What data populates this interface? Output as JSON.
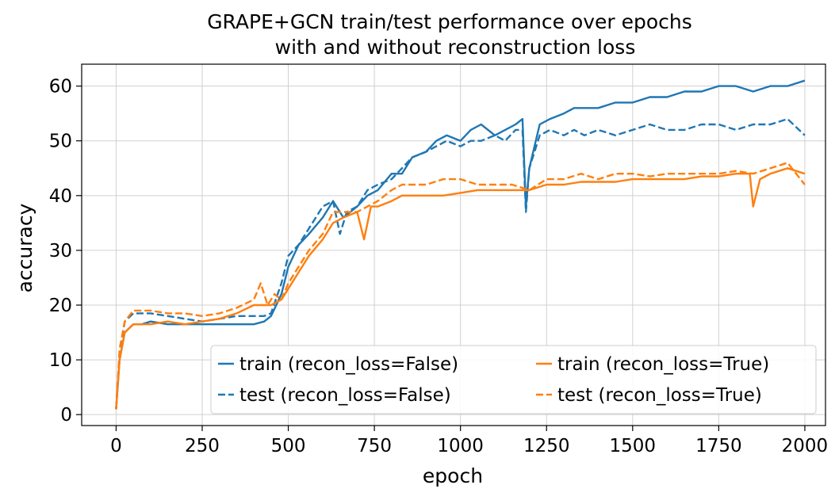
{
  "chart_data": {
    "type": "line",
    "title_line1": "GRAPE+GCN train/test performance over epochs",
    "title_line2": "with and without reconstruction loss",
    "xlabel": "epoch",
    "ylabel": "accuracy",
    "xlim": [
      -100,
      2060
    ],
    "ylim": [
      -2,
      64
    ],
    "xticks": [
      0,
      250,
      500,
      750,
      1000,
      1250,
      1500,
      1750,
      2000
    ],
    "yticks": [
      0,
      10,
      20,
      30,
      40,
      50,
      60
    ],
    "grid": true,
    "legend_placement": "lower-right",
    "legend_columns": 2,
    "colors": {
      "blue": "#1f77b4",
      "orange": "#ff7f0e"
    },
    "series": [
      {
        "name": "train (recon_loss=False)",
        "color": "#1f77b4",
        "linestyle": "solid",
        "x": [
          0,
          10,
          25,
          50,
          75,
          100,
          150,
          200,
          250,
          300,
          350,
          400,
          430,
          450,
          480,
          500,
          530,
          560,
          600,
          630,
          660,
          700,
          730,
          760,
          800,
          830,
          860,
          900,
          930,
          960,
          1000,
          1030,
          1060,
          1100,
          1130,
          1160,
          1180,
          1190,
          1200,
          1230,
          1260,
          1300,
          1330,
          1360,
          1400,
          1450,
          1500,
          1550,
          1600,
          1650,
          1700,
          1750,
          1800,
          1850,
          1900,
          1950,
          2000
        ],
        "values": [
          1,
          10,
          15,
          16.5,
          16.5,
          17,
          16.5,
          16.5,
          16.5,
          16.5,
          16.5,
          16.5,
          17,
          18,
          22,
          27,
          31,
          33,
          36,
          39,
          36,
          38,
          40,
          41,
          44,
          44,
          47,
          48,
          50,
          51,
          50,
          52,
          53,
          51,
          52,
          53,
          54,
          38,
          45,
          53,
          54,
          55,
          56,
          56,
          56,
          57,
          57,
          58,
          58,
          59,
          59,
          60,
          60,
          59,
          60,
          60,
          61
        ]
      },
      {
        "name": "test (recon_loss=False)",
        "color": "#1f77b4",
        "linestyle": "dashed",
        "x": [
          0,
          10,
          25,
          50,
          75,
          100,
          150,
          200,
          250,
          300,
          350,
          400,
          430,
          450,
          480,
          500,
          530,
          560,
          600,
          630,
          650,
          670,
          700,
          730,
          760,
          800,
          830,
          860,
          900,
          930,
          960,
          1000,
          1030,
          1060,
          1100,
          1130,
          1160,
          1180,
          1190,
          1200,
          1230,
          1260,
          1300,
          1330,
          1360,
          1400,
          1450,
          1500,
          1550,
          1600,
          1650,
          1700,
          1750,
          1800,
          1850,
          1900,
          1950,
          2000
        ],
        "values": [
          1,
          11,
          17,
          18.5,
          18.5,
          18.5,
          18,
          17.5,
          17,
          17.5,
          18,
          18,
          18,
          18.5,
          24,
          29,
          31,
          34,
          38,
          39,
          33,
          37,
          38,
          41,
          42,
          43,
          45,
          47,
          48,
          49,
          50,
          49,
          50,
          50,
          51,
          50,
          52,
          52,
          37,
          45,
          51,
          52,
          51,
          52,
          51,
          52,
          51,
          52,
          53,
          52,
          52,
          53,
          53,
          52,
          53,
          53,
          54,
          51
        ]
      },
      {
        "name": "train (recon_loss=True)",
        "color": "#ff7f0e",
        "linestyle": "solid",
        "x": [
          0,
          10,
          25,
          50,
          75,
          100,
          150,
          200,
          250,
          300,
          350,
          400,
          430,
          450,
          480,
          500,
          530,
          560,
          600,
          630,
          660,
          700,
          720,
          740,
          760,
          800,
          830,
          860,
          900,
          950,
          1000,
          1050,
          1100,
          1150,
          1200,
          1250,
          1300,
          1350,
          1400,
          1450,
          1500,
          1550,
          1600,
          1650,
          1700,
          1750,
          1800,
          1840,
          1850,
          1870,
          1900,
          1950,
          2000
        ],
        "values": [
          1,
          10,
          15,
          16.5,
          16.5,
          16.5,
          17,
          16.5,
          17,
          17.5,
          18.5,
          20,
          20,
          20,
          21,
          23,
          26,
          29,
          32,
          35,
          36,
          37,
          32,
          38,
          38,
          39,
          40,
          40,
          40,
          40,
          40.5,
          41,
          41,
          41,
          41,
          42,
          42,
          42.5,
          42.5,
          42.5,
          43,
          43,
          43,
          43,
          43.5,
          43.5,
          44,
          44,
          38,
          43,
          44,
          45,
          44
        ]
      },
      {
        "name": "test (recon_loss=True)",
        "color": "#ff7f0e",
        "linestyle": "dashed",
        "x": [
          0,
          10,
          25,
          50,
          75,
          100,
          150,
          200,
          250,
          300,
          350,
          400,
          420,
          440,
          460,
          480,
          500,
          530,
          560,
          600,
          630,
          660,
          700,
          730,
          760,
          800,
          830,
          860,
          900,
          950,
          1000,
          1050,
          1100,
          1150,
          1200,
          1250,
          1300,
          1350,
          1400,
          1450,
          1500,
          1550,
          1600,
          1650,
          1700,
          1750,
          1800,
          1850,
          1900,
          1950,
          2000
        ],
        "values": [
          1,
          12,
          17,
          19,
          19,
          19,
          18.5,
          18.5,
          18,
          18.5,
          19.5,
          21,
          24,
          20,
          22,
          21,
          24,
          27,
          30,
          33,
          37,
          37,
          37,
          38,
          39,
          41,
          42,
          42,
          42,
          43,
          43,
          42,
          42,
          42,
          41,
          43,
          43,
          44,
          43,
          44,
          44,
          43.5,
          44,
          44,
          44,
          44,
          44.5,
          44,
          45,
          46,
          42
        ]
      }
    ]
  }
}
